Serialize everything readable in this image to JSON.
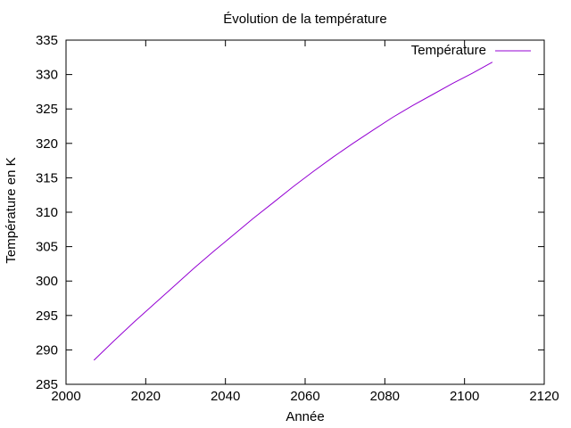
{
  "chart_data": {
    "type": "line",
    "title": "Évolution de la température",
    "xlabel": "Année",
    "ylabel": "Température en K",
    "xlim": [
      2000,
      2120
    ],
    "ylim": [
      285,
      335
    ],
    "xticks": [
      2000,
      2020,
      2040,
      2060,
      2080,
      2100,
      2120
    ],
    "yticks": [
      285,
      290,
      295,
      300,
      305,
      310,
      315,
      320,
      325,
      330,
      335
    ],
    "grid": false,
    "legend_position": "top-right",
    "series": [
      {
        "name": "Température",
        "color": "#9400d3",
        "x": [
          2007,
          2012,
          2017,
          2022,
          2027,
          2032,
          2037,
          2042,
          2047,
          2052,
          2057,
          2062,
          2067,
          2072,
          2077,
          2082,
          2087,
          2092,
          2097,
          2102,
          2107
        ],
        "y": [
          288.5,
          291.3,
          294.0,
          296.6,
          299.2,
          301.8,
          304.3,
          306.7,
          309.1,
          311.4,
          313.7,
          315.9,
          318.0,
          320.0,
          321.9,
          323.8,
          325.5,
          327.1,
          328.7,
          330.2,
          331.8
        ]
      }
    ]
  }
}
